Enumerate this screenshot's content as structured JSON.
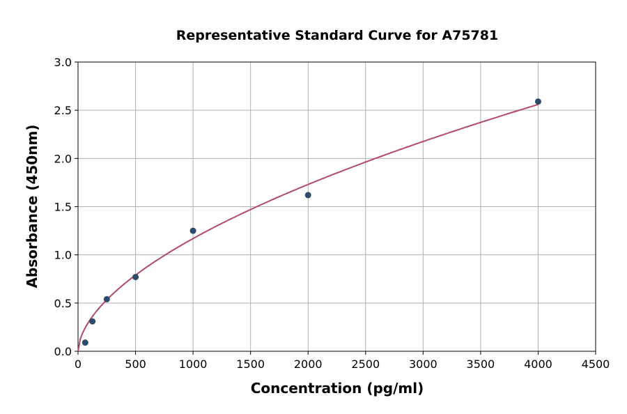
{
  "chart_data": {
    "type": "scatter",
    "title": "Representative Standard Curve for A75781",
    "xlabel": "Concentration (pg/ml)",
    "ylabel": "Absorbance (450nm)",
    "xlim": [
      0,
      4500
    ],
    "ylim": [
      0,
      3.0
    ],
    "xticks": [
      "0",
      "500",
      "1000",
      "1500",
      "2000",
      "2500",
      "3000",
      "3500",
      "4000",
      "4500"
    ],
    "yticks": [
      "0.0",
      "0.5",
      "1.0",
      "1.5",
      "2.0",
      "2.5",
      "3.0"
    ],
    "grid": true,
    "points": {
      "x": [
        62.5,
        125,
        250,
        500,
        1000,
        2000,
        4000
      ],
      "y": [
        0.09,
        0.31,
        0.54,
        0.77,
        1.25,
        1.62,
        2.59
      ]
    },
    "fit_curve": {
      "x_range": [
        0,
        4000
      ],
      "model": "power",
      "values_at": {
        "1000": 1.17,
        "2000": 1.73,
        "4000": 2.56
      }
    },
    "colors": {
      "points": "#2e4a6b",
      "curve": "#b5476b",
      "grid": "#b0b0b0"
    }
  }
}
